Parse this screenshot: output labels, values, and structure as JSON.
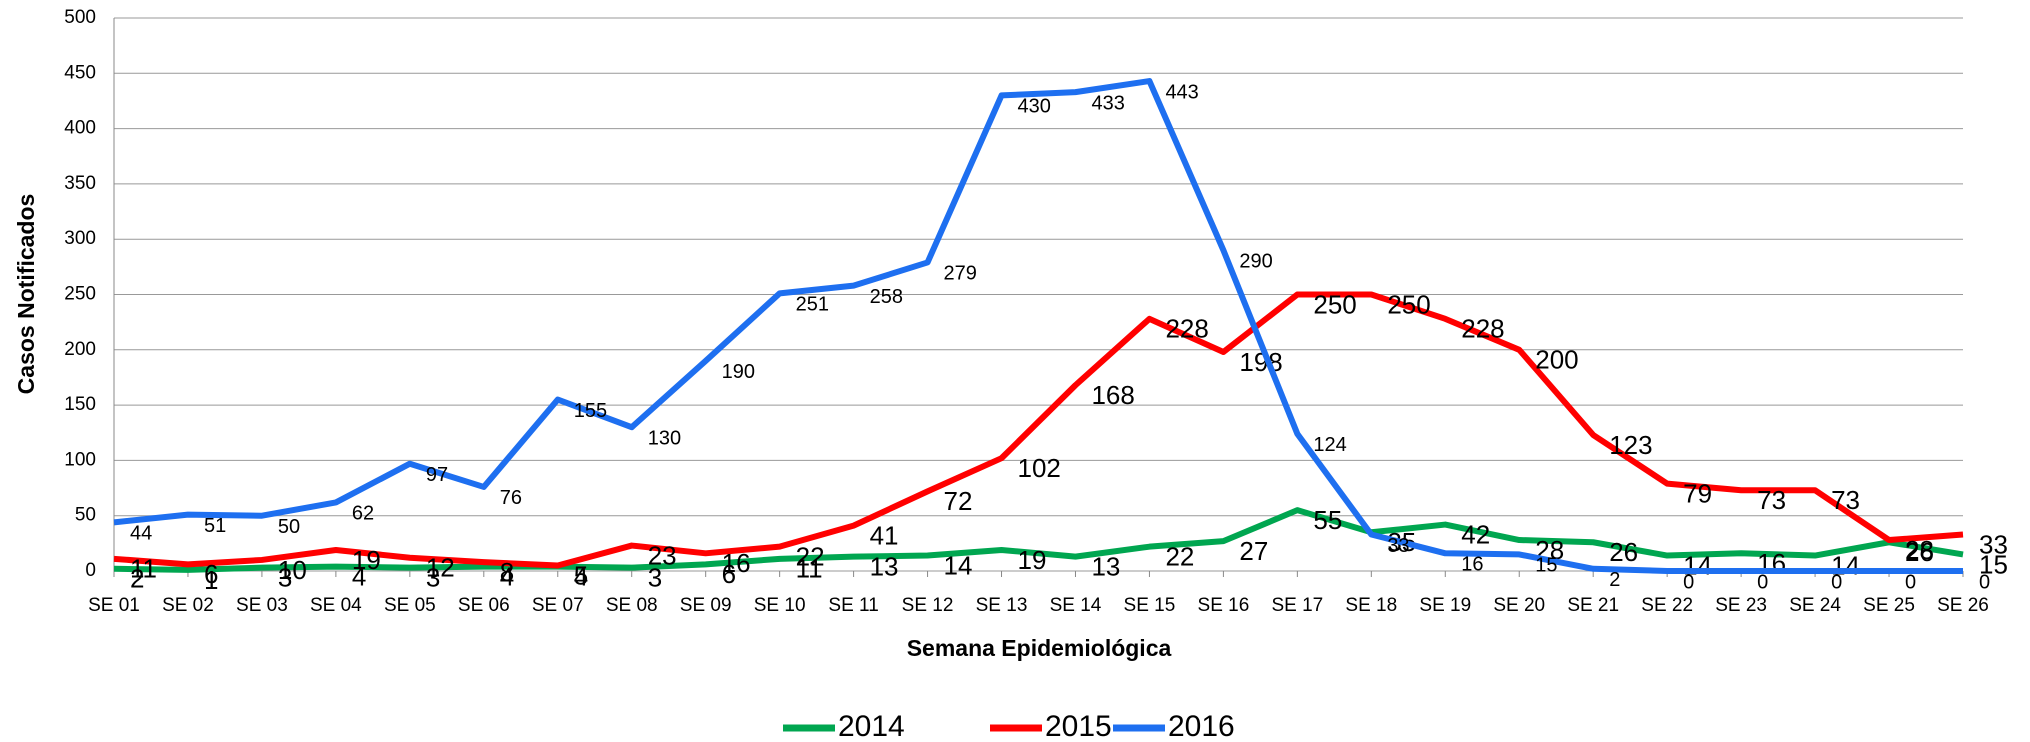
{
  "chart_data": {
    "type": "line",
    "x_label": "Semana Epidemiológica",
    "y_label": "Casos Notificados",
    "categories": [
      "SE 01",
      "SE 02",
      "SE 03",
      "SE 04",
      "SE 05",
      "SE 06",
      "SE 07",
      "SE 08",
      "SE 09",
      "SE 10",
      "SE 11",
      "SE 12",
      "SE 13",
      "SE 14",
      "SE 15",
      "SE 16",
      "SE 17",
      "SE 18",
      "SE 19",
      "SE 20",
      "SE 21",
      "SE 22",
      "SE 23",
      "SE 24",
      "SE 25",
      "SE 26"
    ],
    "series": [
      {
        "name": "2014",
        "color": "#00a650",
        "values": [
          2,
          1,
          3,
          4,
          3,
          4,
          4,
          3,
          6,
          11,
          13,
          14,
          19,
          13,
          22,
          27,
          55,
          35,
          42,
          28,
          26,
          14,
          16,
          14,
          26,
          15
        ]
      },
      {
        "name": "2015",
        "color": "#ff0000",
        "values": [
          11,
          6,
          10,
          19,
          12,
          8,
          5,
          23,
          16,
          22,
          41,
          72,
          102,
          168,
          228,
          198,
          250,
          250,
          228,
          200,
          123,
          79,
          73,
          73,
          28,
          33
        ]
      },
      {
        "name": "2016",
        "color": "#1e6ff0",
        "values": [
          44,
          51,
          50,
          62,
          97,
          76,
          155,
          130,
          190,
          251,
          258,
          279,
          430,
          433,
          443,
          290,
          124,
          33,
          16,
          15,
          2,
          0,
          0,
          0,
          0,
          0
        ]
      }
    ],
    "ylim": [
      0,
      500
    ],
    "yticks": [
      0,
      50,
      100,
      150,
      200,
      250,
      300,
      350,
      400,
      450,
      500
    ],
    "grid": true,
    "legend": "bottom"
  }
}
